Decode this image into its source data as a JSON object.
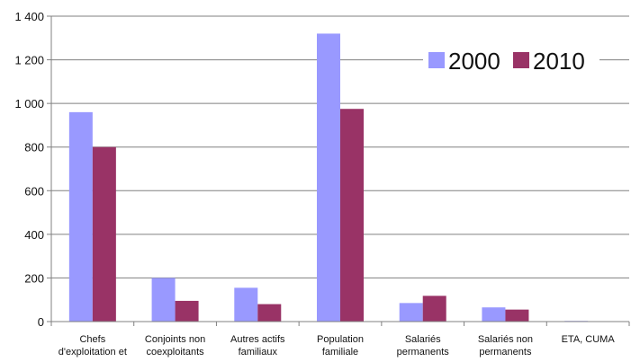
{
  "chart_data": {
    "type": "bar",
    "categories": [
      [
        "Chefs",
        "d'exploitation et"
      ],
      [
        "Conjoints non",
        "coexploitants"
      ],
      [
        "Autres actifs",
        "familiaux"
      ],
      [
        "Population",
        "familiale"
      ],
      [
        "Salariés",
        "permanents"
      ],
      [
        "Salariés non",
        "permanents"
      ],
      [
        "ETA, CUMA"
      ]
    ],
    "series": [
      {
        "name": "2000",
        "color": "#9999ff",
        "values": [
          960,
          200,
          155,
          1320,
          85,
          65,
          3
        ]
      },
      {
        "name": "2010",
        "color": "#993366",
        "values": [
          800,
          95,
          80,
          975,
          118,
          55,
          0
        ]
      }
    ],
    "ylim": [
      0,
      1400
    ],
    "yticks": [
      0,
      200,
      400,
      600,
      800,
      1000,
      1200,
      1400
    ],
    "ytick_labels": [
      "0",
      "200",
      "400",
      "600",
      "800",
      "1 000",
      "1 200",
      "1 400"
    ],
    "grid": true,
    "legend": "top-right"
  }
}
